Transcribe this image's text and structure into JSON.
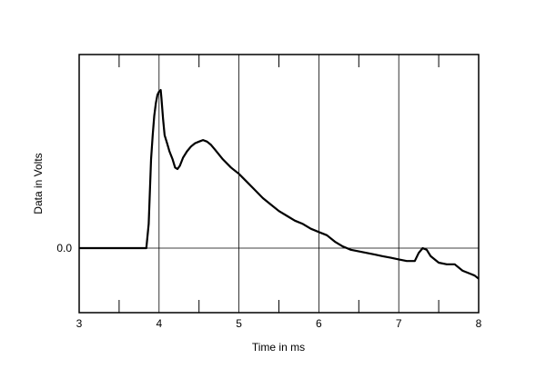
{
  "chart_data": {
    "type": "line",
    "xlabel": "Time in ms",
    "ylabel": "Data in Volts",
    "xlim": [
      3,
      8
    ],
    "ylim": [
      -0.4,
      1.2
    ],
    "x_ticks": [
      3,
      4,
      5,
      6,
      7,
      8
    ],
    "x_tick_labels": [
      "3",
      "4",
      "5",
      "6",
      "7",
      "8"
    ],
    "y_ticks": [
      0.0
    ],
    "y_tick_labels": [
      "0.0"
    ],
    "grid": "vertical lines at x = 4, 5, 6, 7; horizontal zero line",
    "minor_x_ticks": [
      3.5,
      4.5,
      5.5,
      6.5,
      7.5
    ],
    "colors": {
      "line": "#000000",
      "grid": "#000000"
    },
    "series": [
      {
        "x": [
          3.0,
          3.5,
          3.84,
          3.87,
          3.9,
          3.92,
          3.94,
          3.96,
          3.98,
          4.0,
          4.02,
          4.03,
          4.05,
          4.07,
          4.1,
          4.13,
          4.17,
          4.2,
          4.23,
          4.26,
          4.3,
          4.35,
          4.4,
          4.45,
          4.5,
          4.55,
          4.6,
          4.65,
          4.7,
          4.8,
          4.9,
          5.0,
          5.1,
          5.2,
          5.3,
          5.4,
          5.5,
          5.6,
          5.7,
          5.8,
          5.9,
          6.0,
          6.1,
          6.2,
          6.3,
          6.4,
          6.5,
          6.6,
          6.7,
          6.8,
          6.9,
          7.0,
          7.1,
          7.2,
          7.25,
          7.3,
          7.35,
          7.4,
          7.5,
          7.6,
          7.7,
          7.8,
          7.9,
          7.95,
          8.0
        ],
        "y": [
          0.0,
          0.0,
          0.0,
          0.15,
          0.55,
          0.7,
          0.82,
          0.9,
          0.95,
          0.97,
          0.98,
          0.93,
          0.8,
          0.7,
          0.65,
          0.6,
          0.55,
          0.5,
          0.49,
          0.51,
          0.56,
          0.6,
          0.63,
          0.65,
          0.66,
          0.67,
          0.66,
          0.64,
          0.61,
          0.55,
          0.5,
          0.46,
          0.41,
          0.36,
          0.31,
          0.27,
          0.23,
          0.2,
          0.17,
          0.15,
          0.12,
          0.1,
          0.08,
          0.04,
          0.01,
          -0.01,
          -0.02,
          -0.03,
          -0.04,
          -0.05,
          -0.06,
          -0.07,
          -0.08,
          -0.08,
          -0.03,
          0.0,
          -0.01,
          -0.05,
          -0.09,
          -0.1,
          -0.1,
          -0.14,
          -0.16,
          -0.17,
          -0.19
        ]
      }
    ]
  }
}
